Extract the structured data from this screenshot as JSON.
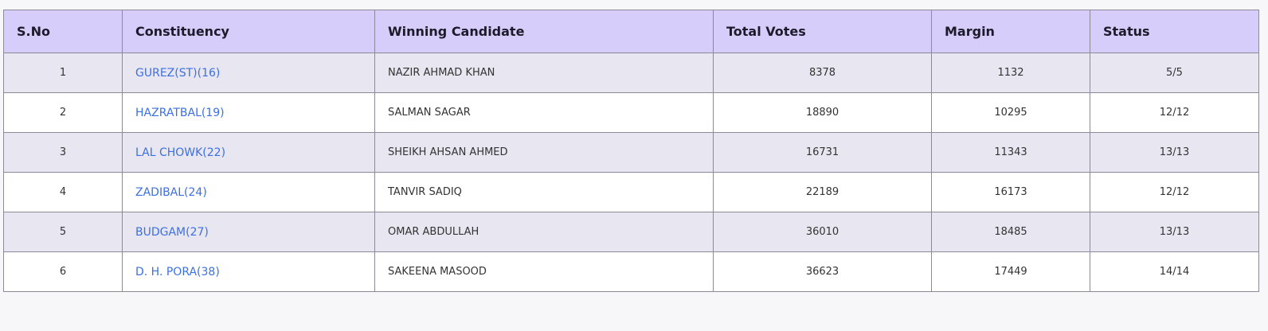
{
  "table": {
    "headers": [
      "S.No",
      "Constituency",
      "Winning Candidate",
      "Total Votes",
      "Margin",
      "Status"
    ],
    "rows": [
      {
        "sno": "1",
        "constituency": "GUREZ(ST)(16)",
        "candidate": "NAZIR AHMAD KHAN",
        "votes": "8378",
        "margin": "1132",
        "status": "5/5"
      },
      {
        "sno": "2",
        "constituency": "HAZRATBAL(19)",
        "candidate": "SALMAN SAGAR",
        "votes": "18890",
        "margin": "10295",
        "status": "12/12"
      },
      {
        "sno": "3",
        "constituency": "LAL CHOWK(22)",
        "candidate": "SHEIKH AHSAN AHMED",
        "votes": "16731",
        "margin": "11343",
        "status": "13/13"
      },
      {
        "sno": "4",
        "constituency": "ZADIBAL(24)",
        "candidate": "TANVIR SADIQ",
        "votes": "22189",
        "margin": "16173",
        "status": "12/12"
      },
      {
        "sno": "5",
        "constituency": "BUDGAM(27)",
        "candidate": "OMAR ABDULLAH",
        "votes": "36010",
        "margin": "18485",
        "status": "13/13"
      },
      {
        "sno": "6",
        "constituency": "D. H. PORA(38)",
        "candidate": "SAKEENA MASOOD",
        "votes": "36623",
        "margin": "17449",
        "status": "14/14"
      }
    ]
  },
  "colors": {
    "header_bg": "#d6cdfb",
    "odd_row_bg": "#e8e6f0",
    "link": "#3b6fe6"
  }
}
